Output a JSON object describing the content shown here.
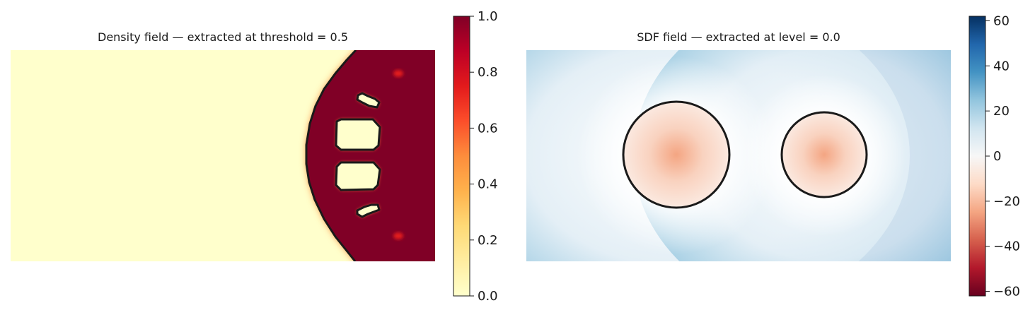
{
  "chart_data": [
    {
      "type": "heatmap",
      "title": "Density field — extracted at threshold = 0.5",
      "field": "density",
      "contour_level": 0.5,
      "colormap": "YlOrRd",
      "colorbar": {
        "min": 0.0,
        "max": 1.0,
        "ticks": [
          "0.0",
          "0.2",
          "0.4",
          "0.6",
          "0.8",
          "1.0"
        ]
      },
      "axes": "off",
      "shapes": {
        "solid_region": "right side, bounded by an arc on the left",
        "holes": 4
      }
    },
    {
      "type": "heatmap",
      "title": "SDF field — extracted at level = 0.0",
      "field": "signed distance",
      "contour_level": 0.0,
      "colormap": "RdBu",
      "colorbar": {
        "min": -62,
        "max": 62,
        "ticks": [
          "−60",
          "−40",
          "−20",
          "0",
          "20",
          "40",
          "60"
        ]
      },
      "axes": "off",
      "shapes": {
        "circles": 2
      }
    }
  ],
  "colors": {
    "contour": "#1a1a1a",
    "density_low": "#ffffcc",
    "density_high": "#800026",
    "sdf_negative": "#67001f",
    "sdf_zero": "#f7f7f7",
    "sdf_positive": "#053061"
  }
}
